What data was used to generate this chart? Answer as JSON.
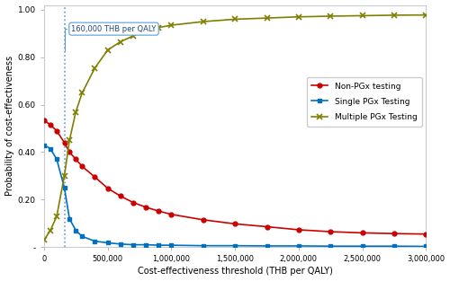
{
  "x_values": [
    0,
    50000,
    100000,
    160000,
    200000,
    250000,
    300000,
    400000,
    500000,
    600000,
    700000,
    800000,
    900000,
    1000000,
    1250000,
    1500000,
    1750000,
    2000000,
    2250000,
    2500000,
    2750000,
    3000000
  ],
  "non_pgx": [
    0.535,
    0.515,
    0.49,
    0.44,
    0.4,
    0.37,
    0.34,
    0.295,
    0.248,
    0.215,
    0.188,
    0.168,
    0.152,
    0.138,
    0.115,
    0.098,
    0.086,
    0.073,
    0.065,
    0.06,
    0.057,
    0.055
  ],
  "single_pgx": [
    0.43,
    0.415,
    0.37,
    0.25,
    0.12,
    0.07,
    0.045,
    0.025,
    0.018,
    0.013,
    0.01,
    0.01,
    0.008,
    0.008,
    0.006,
    0.006,
    0.005,
    0.005,
    0.004,
    0.004,
    0.004,
    0.003
  ],
  "multiple_pgx": [
    0.03,
    0.07,
    0.13,
    0.3,
    0.45,
    0.57,
    0.65,
    0.755,
    0.83,
    0.865,
    0.89,
    0.915,
    0.925,
    0.935,
    0.95,
    0.96,
    0.965,
    0.97,
    0.973,
    0.975,
    0.977,
    0.978
  ],
  "vline_x": 160000,
  "vline_label": "160,000 THB per QALY",
  "color_non_pgx": "#cc0000",
  "color_single_pgx": "#0070c0",
  "color_multiple_pgx": "#7f7f00",
  "xlabel": "Cost-effectiveness threshold (THB per QALY)",
  "ylabel": "Probability of cost-effectiveness",
  "legend_non_pgx": "Non-PGx testing",
  "legend_single_pgx": "Single PGx Testing",
  "legend_multiple_pgx": "Multiple PGx Testing",
  "xlim": [
    0,
    3000000
  ],
  "ylim": [
    0,
    1.05
  ],
  "xticks": [
    0,
    500000,
    1000000,
    1500000,
    2000000,
    2500000,
    3000000
  ],
  "yticks": [
    0.0,
    0.2,
    0.4,
    0.6,
    0.8,
    1.0
  ],
  "xtick_labels": [
    "0",
    "500,000",
    "1,000,000",
    "1,500,000",
    "2,000,000",
    "2,500,000",
    "3,000,000"
  ],
  "ytick_labels": [
    "-",
    "0.20",
    "0.40",
    "0.60",
    "0.80",
    "1.00"
  ],
  "bg_color": "#f2f2f2"
}
